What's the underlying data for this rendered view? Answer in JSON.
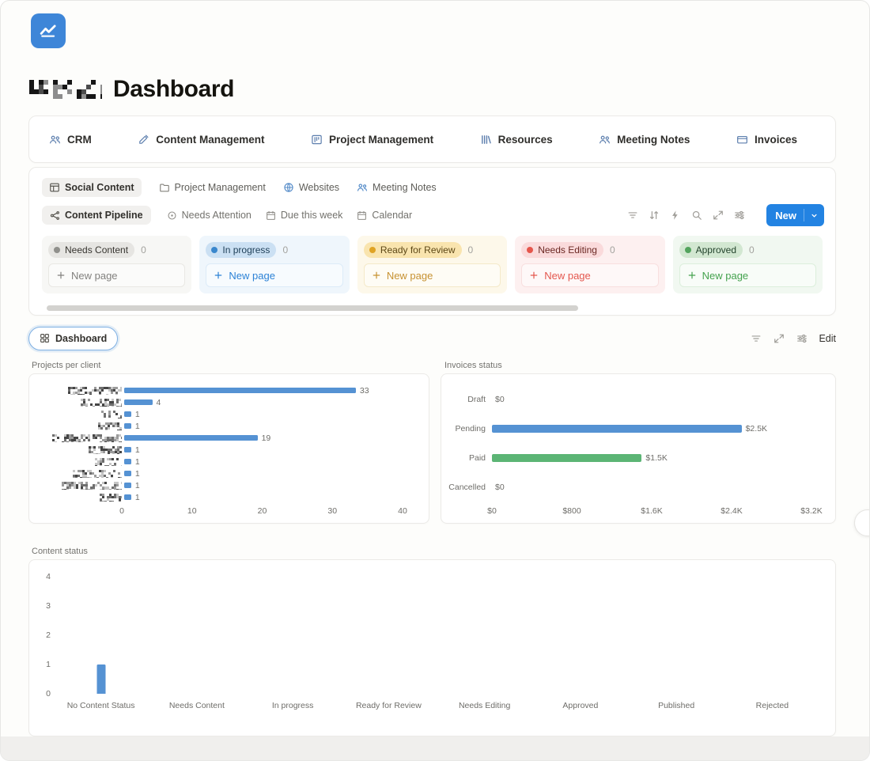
{
  "header": {
    "title": "Dashboard"
  },
  "nav": {
    "items": [
      {
        "label": "CRM"
      },
      {
        "label": "Content Management"
      },
      {
        "label": "Project Management"
      },
      {
        "label": "Resources"
      },
      {
        "label": "Meeting Notes"
      },
      {
        "label": "Invoices"
      }
    ]
  },
  "board": {
    "tabs": [
      {
        "label": "Social Content",
        "active": true
      },
      {
        "label": "Project Management",
        "active": false
      },
      {
        "label": "Websites",
        "active": false
      },
      {
        "label": "Meeting Notes",
        "active": false
      }
    ],
    "views": [
      {
        "label": "Content Pipeline",
        "active": true
      },
      {
        "label": "Needs Attention",
        "active": false
      },
      {
        "label": "Due this week",
        "active": false
      },
      {
        "label": "Calendar",
        "active": false
      }
    ],
    "toolbar": {
      "new_label": "New"
    },
    "new_page_label": "New page",
    "columns": [
      {
        "name": "Needs Content",
        "count": "0",
        "badge_bg": "#e6e5e2",
        "badge_text": "#373530",
        "dot": "#90908c",
        "col_bg": "#f7f7f5",
        "accent": "#82817e",
        "box_border": "#e9e8e4"
      },
      {
        "name": "In progress",
        "count": "0",
        "badge_bg": "#cbe0f3",
        "badge_text": "#1d3e57",
        "dot": "#3a87cd",
        "col_bg": "#eff6fc",
        "accent": "#2c82d6",
        "box_border": "#dcebf8"
      },
      {
        "name": "Ready for Review",
        "count": "0",
        "badge_bg": "#f9e4ae",
        "badge_text": "#5c4716",
        "dot": "#dfa324",
        "col_bg": "#fdf8ea",
        "accent": "#c79232",
        "box_border": "#f4e9c9"
      },
      {
        "name": "Needs Editing",
        "count": "0",
        "badge_bg": "#fadadb",
        "badge_text": "#6b2823",
        "dot": "#e5564c",
        "col_bg": "#fdf0f0",
        "accent": "#e4574e",
        "box_border": "#f8dfdf"
      },
      {
        "name": "Approved",
        "count": "0",
        "badge_bg": "#d2e7d1",
        "badge_text": "#23432c",
        "dot": "#53a35d",
        "col_bg": "#f1f8f1",
        "accent": "#44a24e",
        "box_border": "#dcefdc"
      }
    ]
  },
  "dashboard_bar": {
    "tab_label": "Dashboard",
    "edit_label": "Edit"
  },
  "chart_data": [
    {
      "type": "bar",
      "orientation": "horizontal",
      "title": "Projects per client",
      "categories_redacted": true,
      "redacted_label_widths": [
        68,
        52,
        26,
        30,
        88,
        42,
        34,
        62,
        76,
        28
      ],
      "values": [
        33,
        4,
        1,
        1,
        19,
        1,
        1,
        1,
        1,
        1
      ],
      "value_labels": [
        "33",
        "4",
        "1",
        "1",
        "19",
        "1",
        "1",
        "1",
        "1",
        "1"
      ],
      "x_ticks": [
        "0",
        "10",
        "20",
        "30",
        "40"
      ],
      "xlim": [
        0,
        40
      ],
      "bar_color": "#5592d3",
      "grid": false,
      "legend": false
    },
    {
      "type": "bar",
      "orientation": "horizontal",
      "title": "Invoices status",
      "categories": [
        "Draft",
        "Pending",
        "Paid",
        "Cancelled"
      ],
      "values": [
        0,
        2500,
        1500,
        0
      ],
      "value_labels": [
        "$0",
        "$2.5K",
        "$1.5K",
        "$0"
      ],
      "x_ticks": [
        "$0",
        "$800",
        "$1.6K",
        "$2.4K",
        "$3.2K"
      ],
      "xlim": [
        0,
        3200
      ],
      "bar_colors": [
        "#5592d3",
        "#5592d3",
        "#5cb575",
        "#5592d3"
      ],
      "grid": false,
      "legend": false
    },
    {
      "type": "bar",
      "orientation": "vertical",
      "title": "Content status",
      "categories": [
        "No Content Status",
        "Needs Content",
        "In progress",
        "Ready for Review",
        "Needs Editing",
        "Approved",
        "Published",
        "Rejected"
      ],
      "values": [
        1,
        0,
        0,
        0,
        0,
        0,
        0,
        0
      ],
      "y_ticks": [
        "4",
        "3",
        "2",
        "1",
        "0"
      ],
      "ylim": [
        0,
        4
      ],
      "bar_color": "#5592d3",
      "grid": false,
      "legend": false
    }
  ]
}
